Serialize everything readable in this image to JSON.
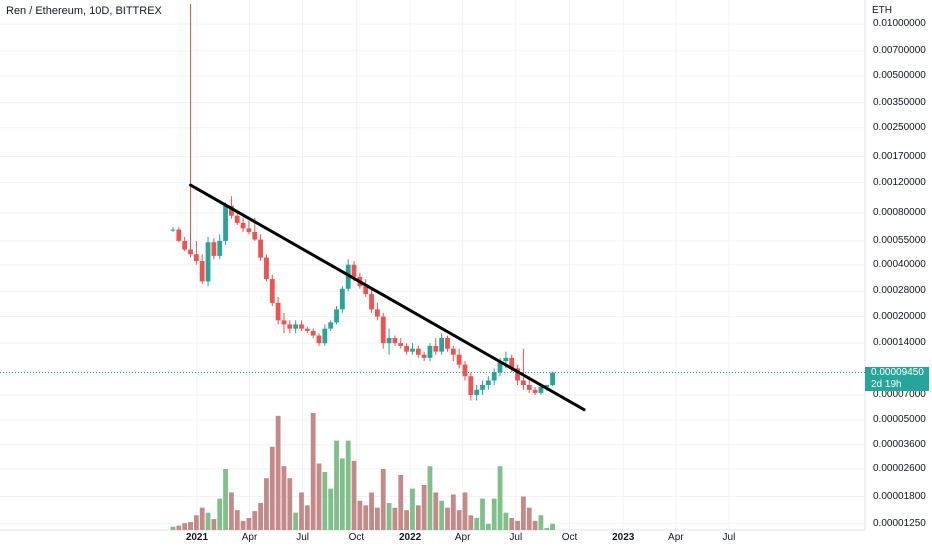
{
  "header": {
    "title": "Ren / Ethereum, 10D, BITTREX"
  },
  "y_axis": {
    "unit": "ETH",
    "ticks": [
      "0.01000000",
      "0.00700000",
      "0.00500000",
      "0.00350000",
      "0.00250000",
      "0.00170000",
      "0.00120000",
      "0.00080000",
      "0.00055000",
      "0.00040000",
      "0.00028000",
      "0.00020000",
      "0.00014000",
      "0.00007000",
      "0.00005000",
      "0.00003600",
      "0.00002600",
      "0.00001800",
      "0.00001250"
    ]
  },
  "x_axis": {
    "ticks": [
      "2021",
      "Apr",
      "Jul",
      "Oct",
      "2022",
      "Apr",
      "Jul",
      "Oct",
      "2023",
      "Apr",
      "Jul"
    ]
  },
  "price_tag": {
    "value": "0.00009450",
    "countdown": "2d 19h"
  },
  "colors": {
    "up": "#26a69a",
    "down": "#ef5350",
    "vol_up": "#7fc08a",
    "vol_down": "#c48a8a",
    "trendline": "#000000",
    "grid": "#f0f3fa"
  },
  "chart_data": {
    "type": "candlestick",
    "title": "Ren / Ethereum, 10D, BITTREX",
    "ylabel": "ETH",
    "y_scale": "log",
    "ylim": [
      1.15e-05,
      0.0138
    ],
    "candles": [
      {
        "t": "2020-11-21",
        "o": 0.00064,
        "h": 0.00066,
        "l": 0.00062,
        "c": 0.00064,
        "v": 1.2e-05
      },
      {
        "t": "2020-12-01",
        "o": 0.00064,
        "h": 0.00066,
        "l": 0.00054,
        "c": 0.00055,
        "v": 1.22e-05
      },
      {
        "t": "2020-12-11",
        "o": 0.00055,
        "h": 0.00058,
        "l": 0.00048,
        "c": 0.00049,
        "v": 1.26e-05
      },
      {
        "t": "2020-12-21",
        "o": 0.00049,
        "h": 0.0131,
        "l": 0.00044,
        "c": 0.00046,
        "v": 1.28e-05
      },
      {
        "t": "2020-12-31",
        "o": 0.00046,
        "h": 0.00055,
        "l": 0.0004,
        "c": 0.00042,
        "v": 1.4e-05
      },
      {
        "t": "2021-01-10",
        "o": 0.00042,
        "h": 0.00046,
        "l": 0.00031,
        "c": 0.00032,
        "v": 1.55e-05
      },
      {
        "t": "2021-01-20",
        "o": 0.00032,
        "h": 0.00058,
        "l": 0.0003,
        "c": 0.00054,
        "v": 1.45e-05
      },
      {
        "t": "2021-01-30",
        "o": 0.00054,
        "h": 0.00057,
        "l": 0.00043,
        "c": 0.00045,
        "v": 1.33e-05
      },
      {
        "t": "2021-02-09",
        "o": 0.00045,
        "h": 0.0006,
        "l": 0.00043,
        "c": 0.00055,
        "v": 1.75e-05
      },
      {
        "t": "2021-02-19",
        "o": 0.00055,
        "h": 0.00092,
        "l": 0.00052,
        "c": 0.00088,
        "v": 2.6e-05
      },
      {
        "t": "2021-03-01",
        "o": 0.00088,
        "h": 0.001,
        "l": 0.00074,
        "c": 0.00077,
        "v": 1.9e-05
      },
      {
        "t": "2021-03-11",
        "o": 0.00077,
        "h": 0.00082,
        "l": 0.00068,
        "c": 0.0007,
        "v": 1.5e-05
      },
      {
        "t": "2021-03-21",
        "o": 0.0007,
        "h": 0.00075,
        "l": 0.00062,
        "c": 0.00065,
        "v": 1.3e-05
      },
      {
        "t": "2021-03-31",
        "o": 0.00065,
        "h": 0.00072,
        "l": 0.0006,
        "c": 0.00062,
        "v": 1.35e-05
      },
      {
        "t": "2021-04-10",
        "o": 0.00062,
        "h": 0.00075,
        "l": 0.00055,
        "c": 0.00056,
        "v": 1.48e-05
      },
      {
        "t": "2021-04-20",
        "o": 0.00056,
        "h": 0.0006,
        "l": 0.00042,
        "c": 0.00044,
        "v": 1.65e-05
      },
      {
        "t": "2021-04-30",
        "o": 0.00044,
        "h": 0.00046,
        "l": 0.00032,
        "c": 0.00033,
        "v": 2.3e-05
      },
      {
        "t": "2021-05-10",
        "o": 0.00033,
        "h": 0.00035,
        "l": 0.00023,
        "c": 0.00024,
        "v": 3.5e-05
      },
      {
        "t": "2021-05-20",
        "o": 0.00024,
        "h": 0.00026,
        "l": 0.00018,
        "c": 0.00019,
        "v": 5.3e-05
      },
      {
        "t": "2021-05-30",
        "o": 0.00019,
        "h": 0.00021,
        "l": 0.00016,
        "c": 0.00018,
        "v": 2.7e-05
      },
      {
        "t": "2021-06-09",
        "o": 0.00018,
        "h": 0.00019,
        "l": 0.00016,
        "c": 0.00017,
        "v": 2.3e-05
      },
      {
        "t": "2021-06-19",
        "o": 0.00017,
        "h": 0.00019,
        "l": 0.00016,
        "c": 0.00018,
        "v": 1.45e-05
      },
      {
        "t": "2021-06-29",
        "o": 0.00018,
        "h": 0.00019,
        "l": 0.000165,
        "c": 0.00017,
        "v": 1.9e-05
      },
      {
        "t": "2021-07-09",
        "o": 0.00017,
        "h": 0.000175,
        "l": 0.00016,
        "c": 0.000165,
        "v": 1.6e-05
      },
      {
        "t": "2021-07-19",
        "o": 0.000165,
        "h": 0.00017,
        "l": 0.00015,
        "c": 0.000155,
        "v": 5.5e-05
      },
      {
        "t": "2021-07-29",
        "o": 0.000155,
        "h": 0.00016,
        "l": 0.000135,
        "c": 0.00014,
        "v": 2.8e-05
      },
      {
        "t": "2021-08-08",
        "o": 0.00014,
        "h": 0.00018,
        "l": 0.000135,
        "c": 0.00017,
        "v": 2.5e-05
      },
      {
        "t": "2021-08-18",
        "o": 0.00017,
        "h": 0.00019,
        "l": 0.000165,
        "c": 0.000185,
        "v": 2e-05
      },
      {
        "t": "2021-08-28",
        "o": 0.000185,
        "h": 0.00023,
        "l": 0.00018,
        "c": 0.00022,
        "v": 3.8e-05
      },
      {
        "t": "2021-09-07",
        "o": 0.00022,
        "h": 0.0003,
        "l": 0.00021,
        "c": 0.00029,
        "v": 3e-05
      },
      {
        "t": "2021-09-17",
        "o": 0.00029,
        "h": 0.00043,
        "l": 0.00028,
        "c": 0.0004,
        "v": 3.8e-05
      },
      {
        "t": "2021-09-27",
        "o": 0.0004,
        "h": 0.00042,
        "l": 0.00032,
        "c": 0.00034,
        "v": 2.9e-05
      },
      {
        "t": "2021-10-07",
        "o": 0.00034,
        "h": 0.00036,
        "l": 0.00029,
        "c": 0.0003,
        "v": 1.7e-05
      },
      {
        "t": "2021-10-17",
        "o": 0.0003,
        "h": 0.00033,
        "l": 0.00026,
        "c": 0.00027,
        "v": 1.6e-05
      },
      {
        "t": "2021-10-27",
        "o": 0.00027,
        "h": 0.00029,
        "l": 0.00021,
        "c": 0.00022,
        "v": 1.9e-05
      },
      {
        "t": "2021-11-06",
        "o": 0.00022,
        "h": 0.00024,
        "l": 0.00019,
        "c": 0.0002,
        "v": 1.55e-05
      },
      {
        "t": "2021-11-16",
        "o": 0.0002,
        "h": 0.00021,
        "l": 0.00013,
        "c": 0.00014,
        "v": 2.6e-05
      },
      {
        "t": "2021-11-26",
        "o": 0.00014,
        "h": 0.00017,
        "l": 0.00012,
        "c": 0.00015,
        "v": 1.65e-05
      },
      {
        "t": "2021-12-06",
        "o": 0.00015,
        "h": 0.000155,
        "l": 0.000135,
        "c": 0.00014,
        "v": 1.55e-05
      },
      {
        "t": "2021-12-16",
        "o": 0.00014,
        "h": 0.00015,
        "l": 0.00013,
        "c": 0.000135,
        "v": 2.4e-05
      },
      {
        "t": "2021-12-26",
        "o": 0.000135,
        "h": 0.00014,
        "l": 0.00012,
        "c": 0.000125,
        "v": 1.5e-05
      },
      {
        "t": "2022-01-05",
        "o": 0.000125,
        "h": 0.00014,
        "l": 0.00012,
        "c": 0.00013,
        "v": 2e-05
      },
      {
        "t": "2022-01-15",
        "o": 0.00013,
        "h": 0.000135,
        "l": 0.000115,
        "c": 0.00012,
        "v": 1.6e-05
      },
      {
        "t": "2022-01-25",
        "o": 0.00012,
        "h": 0.000125,
        "l": 0.00011,
        "c": 0.000115,
        "v": 2.1e-05
      },
      {
        "t": "2022-02-04",
        "o": 0.000115,
        "h": 0.00014,
        "l": 0.00011,
        "c": 0.000135,
        "v": 2.7e-05
      },
      {
        "t": "2022-02-14",
        "o": 0.000135,
        "h": 0.00015,
        "l": 0.00012,
        "c": 0.000125,
        "v": 1.9e-05
      },
      {
        "t": "2022-02-24",
        "o": 0.000125,
        "h": 0.00016,
        "l": 0.00012,
        "c": 0.00015,
        "v": 1.7e-05
      },
      {
        "t": "2022-03-06",
        "o": 0.00015,
        "h": 0.000155,
        "l": 0.000125,
        "c": 0.00013,
        "v": 1.55e-05
      },
      {
        "t": "2022-03-16",
        "o": 0.00013,
        "h": 0.000135,
        "l": 0.00011,
        "c": 0.00012,
        "v": 1.85e-05
      },
      {
        "t": "2022-03-26",
        "o": 0.00012,
        "h": 0.00013,
        "l": 0.0001,
        "c": 0.000105,
        "v": 1.5e-05
      },
      {
        "t": "2022-04-05",
        "o": 0.000105,
        "h": 0.00011,
        "l": 8.5e-05,
        "c": 9e-05,
        "v": 1.9e-05
      },
      {
        "t": "2022-04-15",
        "o": 9e-05,
        "h": 9.5e-05,
        "l": 6.5e-05,
        "c": 7e-05,
        "v": 1.4e-05
      },
      {
        "t": "2022-04-25",
        "o": 7e-05,
        "h": 8e-05,
        "l": 6.5e-05,
        "c": 7.5e-05,
        "v": 1.35e-05
      },
      {
        "t": "2022-05-05",
        "o": 7.5e-05,
        "h": 8.5e-05,
        "l": 7e-05,
        "c": 8e-05,
        "v": 1.75e-05
      },
      {
        "t": "2022-05-15",
        "o": 8e-05,
        "h": 9e-05,
        "l": 7.5e-05,
        "c": 8.5e-05,
        "v": 1.25e-05
      },
      {
        "t": "2022-05-25",
        "o": 8.5e-05,
        "h": 0.0001,
        "l": 8e-05,
        "c": 9.5e-05,
        "v": 1.75e-05
      },
      {
        "t": "2022-06-04",
        "o": 9.5e-05,
        "h": 0.000115,
        "l": 9e-05,
        "c": 0.00011,
        "v": 2.7e-05
      },
      {
        "t": "2022-06-14",
        "o": 0.00011,
        "h": 0.000125,
        "l": 0.0001,
        "c": 0.000115,
        "v": 1.45e-05
      },
      {
        "t": "2022-06-24",
        "o": 0.000115,
        "h": 0.00012,
        "l": 9.5e-05,
        "c": 0.0001,
        "v": 1.35e-05
      },
      {
        "t": "2022-07-04",
        "o": 0.0001,
        "h": 0.000105,
        "l": 8e-05,
        "c": 8.5e-05,
        "v": 1.3e-05
      },
      {
        "t": "2022-07-14",
        "o": 8.5e-05,
        "h": 0.00013,
        "l": 7.5e-05,
        "c": 8e-05,
        "v": 1.8e-05
      },
      {
        "t": "2022-07-24",
        "o": 8e-05,
        "h": 9e-05,
        "l": 7.2e-05,
        "c": 7.5e-05,
        "v": 1.55e-05
      },
      {
        "t": "2022-08-03",
        "o": 7.5e-05,
        "h": 7.8e-05,
        "l": 7e-05,
        "c": 7.2e-05,
        "v": 1.3e-05
      },
      {
        "t": "2022-08-13",
        "o": 7.2e-05,
        "h": 8e-05,
        "l": 7e-05,
        "c": 7.8e-05,
        "v": 1.4e-05
      },
      {
        "t": "2022-08-23",
        "o": 7.8e-05,
        "h": 8e-05,
        "l": 7.4e-05,
        "c": 8e-05,
        "v": 1.18e-05
      },
      {
        "t": "2022-09-02",
        "o": 8e-05,
        "h": 9.55e-05,
        "l": 7.9e-05,
        "c": 9.45e-05,
        "v": 1.25e-05
      }
    ],
    "annotations": [
      {
        "type": "trendline",
        "from": {
          "t": "2020-12-21",
          "y": 0.00116
        },
        "to": {
          "t": "2022-10-26",
          "y": 5.75e-05
        }
      }
    ],
    "last_price": 9.45e-05,
    "grid": true
  }
}
